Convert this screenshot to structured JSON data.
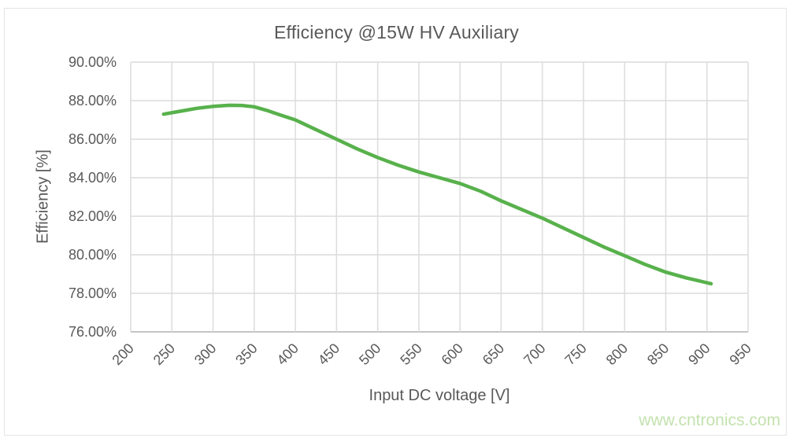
{
  "page": {
    "watermark": "www.cntronics.com",
    "colors": {
      "background": "#ffffff",
      "frame_border": "#e4e4e4",
      "text_gray": "#595959",
      "gridline": "#dcdcdc",
      "axis_line": "#c4c4c4",
      "series_green": "#58b14c",
      "watermark_green": "#c3e2ae"
    }
  },
  "chart_data": {
    "type": "line",
    "title": "Efficiency @15W HV Auxiliary",
    "xlabel": "Input DC voltage [V]",
    "ylabel": "Efficiency [%]",
    "xlim": [
      200,
      950
    ],
    "ylim": [
      76,
      90
    ],
    "grid": true,
    "legend": "none",
    "x_ticks": [
      200,
      250,
      300,
      350,
      400,
      450,
      500,
      550,
      600,
      650,
      700,
      750,
      800,
      850,
      900,
      950
    ],
    "x_tick_labels": [
      "200",
      "250",
      "300",
      "350",
      "400",
      "450",
      "500",
      "550",
      "600",
      "650",
      "700",
      "750",
      "800",
      "850",
      "900",
      "950"
    ],
    "y_ticks": [
      76,
      78,
      80,
      82,
      84,
      86,
      88,
      90
    ],
    "y_tick_labels": [
      "76.00%",
      "78.00%",
      "80.00%",
      "82.00%",
      "84.00%",
      "86.00%",
      "88.00%",
      "90.00%"
    ],
    "series": [
      {
        "name": "Efficiency @15W HV Auxiliary",
        "color": "#58b14c",
        "points": [
          [
            240,
            87.3
          ],
          [
            260,
            87.45
          ],
          [
            280,
            87.6
          ],
          [
            300,
            87.7
          ],
          [
            320,
            87.76
          ],
          [
            335,
            87.75
          ],
          [
            350,
            87.68
          ],
          [
            365,
            87.5
          ],
          [
            380,
            87.28
          ],
          [
            400,
            87.0
          ],
          [
            425,
            86.5
          ],
          [
            450,
            86.0
          ],
          [
            475,
            85.5
          ],
          [
            500,
            85.05
          ],
          [
            525,
            84.65
          ],
          [
            550,
            84.3
          ],
          [
            575,
            84.0
          ],
          [
            600,
            83.7
          ],
          [
            625,
            83.3
          ],
          [
            650,
            82.8
          ],
          [
            675,
            82.35
          ],
          [
            700,
            81.9
          ],
          [
            725,
            81.4
          ],
          [
            750,
            80.9
          ],
          [
            775,
            80.4
          ],
          [
            800,
            79.95
          ],
          [
            825,
            79.5
          ],
          [
            850,
            79.1
          ],
          [
            875,
            78.8
          ],
          [
            890,
            78.65
          ],
          [
            905,
            78.5
          ]
        ]
      }
    ]
  }
}
